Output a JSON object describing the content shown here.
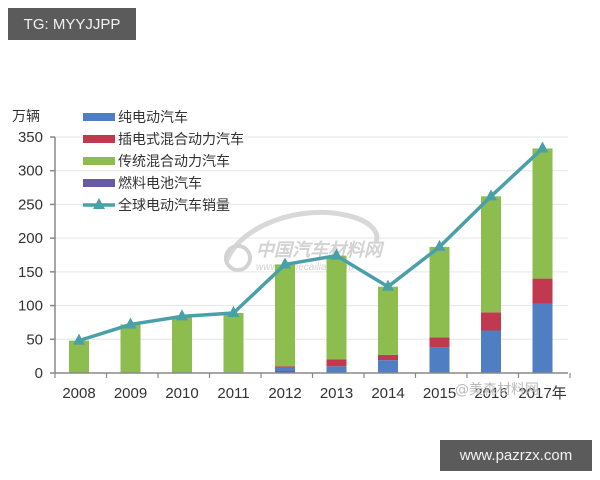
{
  "badges": {
    "top": "TG: MYYJJPP",
    "bottom": "www.pazrzx.com"
  },
  "watermarks": {
    "center_title": "中国汽车材料网",
    "center_url": "www.qichecailiao.com",
    "bottom_right": "@美森材料网"
  },
  "colors": {
    "bev": "#4f7ec2",
    "phev": "#c0394f",
    "hev": "#8cbd4e",
    "fcev": "#6a5aa6",
    "line": "#4aa0a8",
    "axis": "#888888",
    "grid": "#e6e6e6"
  },
  "chart_data": {
    "type": "bar",
    "stacked": true,
    "title": "",
    "xlabel": "",
    "ylabel": "万辆",
    "ylim": [
      0,
      350
    ],
    "yticks": [
      0,
      50,
      100,
      150,
      200,
      250,
      300,
      350
    ],
    "grid": true,
    "legend_position": "top-left",
    "categories": [
      "2008",
      "2009",
      "2010",
      "2011",
      "2012",
      "2013",
      "2014",
      "2015",
      "2016",
      "2017"
    ],
    "x_tick_labels_visible": [
      "2008",
      "2009",
      "2010",
      "2011",
      "2012",
      "2013",
      "2014",
      "2015",
      "2016",
      "2017年"
    ],
    "series": [
      {
        "name": "纯电动汽车",
        "type": "bar",
        "color": "#4f7ec2",
        "values": [
          0,
          0,
          0,
          0.5,
          5,
          10,
          19,
          38,
          63,
          103
        ]
      },
      {
        "name": "插电式混合动力汽车",
        "type": "bar",
        "color": "#c0394f",
        "values": [
          0,
          0,
          0,
          0,
          2,
          10,
          8,
          15,
          27,
          37
        ]
      },
      {
        "name": "传统混合动力汽车",
        "type": "bar",
        "color": "#8cbd4e",
        "values": [
          48,
          72,
          84,
          88,
          151,
          154,
          101,
          134,
          172,
          193
        ]
      },
      {
        "name": "燃料电池汽车",
        "type": "bar",
        "color": "#6a5aa6",
        "values": [
          0,
          0,
          0,
          0.5,
          3,
          0,
          0,
          0,
          0,
          0
        ]
      },
      {
        "name": "全球电动汽车销量",
        "type": "line",
        "marker": "triangle",
        "color": "#4aa0a8",
        "values": [
          48,
          72,
          84,
          89,
          161,
          174,
          128,
          187,
          262,
          333
        ]
      }
    ]
  }
}
